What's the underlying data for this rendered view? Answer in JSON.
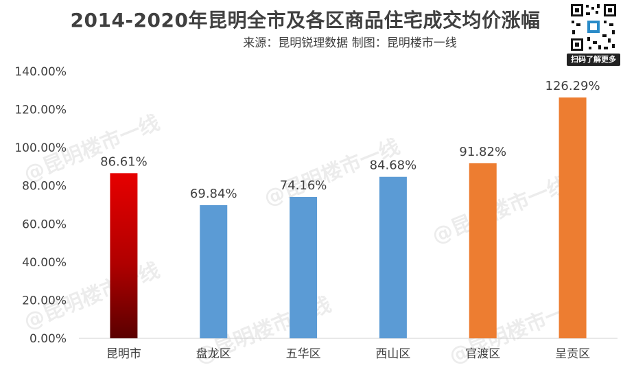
{
  "title": "2014-2020年昆明全市及各区商品住宅成交均价涨幅",
  "subtitle": "来源：昆明锐理数据 制图：昆明楼市一线",
  "qr_caption": "扫码了解更多",
  "watermark": "@昆明楼市一线",
  "chart_data": {
    "type": "bar",
    "title": "2014-2020年昆明全市及各区商品住宅成交均价涨幅",
    "subtitle": "来源：昆明锐理数据 制图：昆明楼市一线",
    "categories": [
      "昆明市",
      "盘龙区",
      "五华区",
      "西山区",
      "官渡区",
      "呈贡区"
    ],
    "values": [
      86.61,
      69.84,
      74.16,
      84.68,
      91.82,
      126.29
    ],
    "value_labels": [
      "86.61%",
      "69.84%",
      "74.16%",
      "84.68%",
      "91.82%",
      "126.29%"
    ],
    "bar_colors": [
      "gradient-red",
      "#5B9BD5",
      "#5B9BD5",
      "#5B9BD5",
      "#ED7D31",
      "#ED7D31"
    ],
    "ylim": [
      0,
      140
    ],
    "yticks": [
      0,
      20,
      40,
      60,
      80,
      100,
      120,
      140
    ],
    "ytick_labels": [
      "0.00%",
      "20.00%",
      "40.00%",
      "60.00%",
      "80.00%",
      "100.00%",
      "120.00%",
      "140.00%"
    ],
    "grid": false,
    "legend": "none"
  }
}
